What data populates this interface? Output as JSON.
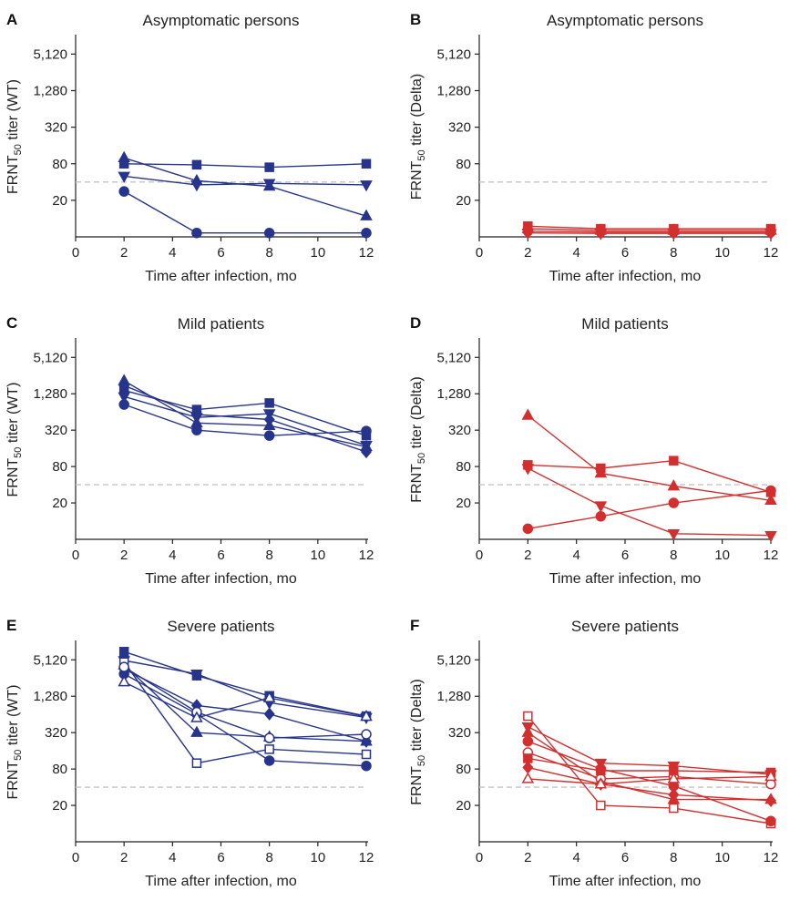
{
  "colors": {
    "wt": "#27348b",
    "delta": "#d32f2f"
  },
  "chart_data": [
    {
      "type": "line",
      "panel": "A",
      "title": "Asymptomatic persons",
      "ylabel": [
        "FRNT",
        "50",
        " titer (WT)"
      ],
      "xlabel": "Time after infection, mo",
      "x_ticks": [
        0,
        2,
        4,
        6,
        8,
        10,
        12
      ],
      "y_ticks": [
        20,
        80,
        320,
        1280,
        5120
      ],
      "y_tick_labels": [
        "20",
        "80",
        "320",
        "1,280",
        "5,120"
      ],
      "xlim": [
        0,
        12
      ],
      "ylim": [
        5,
        10000
      ],
      "yscale": "log",
      "reference_line": 40,
      "color": "wt",
      "series": [
        {
          "marker": "triangle-up",
          "filled": true,
          "x": [
            2,
            5,
            8,
            12
          ],
          "y": [
            100,
            42,
            34,
            11
          ]
        },
        {
          "marker": "square",
          "filled": true,
          "x": [
            2,
            5,
            8,
            12
          ],
          "y": [
            80,
            77,
            70,
            80
          ]
        },
        {
          "marker": "triangle-down",
          "filled": true,
          "x": [
            2,
            5,
            8,
            12
          ],
          "y": [
            50,
            36,
            38,
            36
          ]
        },
        {
          "marker": "circle",
          "filled": true,
          "x": [
            2,
            5,
            8,
            12
          ],
          "y": [
            28,
            5.8,
            5.8,
            5.8
          ]
        }
      ]
    },
    {
      "type": "line",
      "panel": "B",
      "title": "Asymptomatic persons",
      "ylabel": [
        "FRNT",
        "50",
        " titer (Delta)"
      ],
      "xlabel": "Time after infection, mo",
      "x_ticks": [
        0,
        2,
        4,
        6,
        8,
        10,
        12
      ],
      "y_ticks": [
        20,
        80,
        320,
        1280,
        5120
      ],
      "y_tick_labels": [
        "20",
        "80",
        "320",
        "1,280",
        "5,120"
      ],
      "xlim": [
        0,
        12
      ],
      "ylim": [
        5,
        10000
      ],
      "yscale": "log",
      "reference_line": 40,
      "color": "delta",
      "series": [
        {
          "marker": "square",
          "filled": true,
          "x": [
            2,
            5,
            8,
            12
          ],
          "y": [
            7.5,
            6.8,
            6.8,
            6.8
          ]
        },
        {
          "marker": "triangle-up",
          "filled": true,
          "x": [
            2,
            5,
            8,
            12
          ],
          "y": [
            6.8,
            6.4,
            6.4,
            6.4
          ]
        },
        {
          "marker": "circle",
          "filled": true,
          "x": [
            2,
            5,
            8,
            12
          ],
          "y": [
            6.2,
            6.0,
            6.0,
            6.0
          ]
        },
        {
          "marker": "triangle-down",
          "filled": true,
          "x": [
            2,
            5,
            8,
            12
          ],
          "y": [
            5.8,
            5.7,
            5.7,
            5.7
          ]
        }
      ]
    },
    {
      "type": "line",
      "panel": "C",
      "title": "Mild patients",
      "ylabel": [
        "FRNT",
        "50",
        " titer (WT)"
      ],
      "xlabel": "Time after infection, mo",
      "x_ticks": [
        0,
        2,
        4,
        6,
        8,
        10,
        12
      ],
      "y_ticks": [
        20,
        80,
        320,
        1280,
        5120
      ],
      "y_tick_labels": [
        "20",
        "80",
        "320",
        "1,280",
        "5,120"
      ],
      "xlim": [
        0,
        12
      ],
      "ylim": [
        5,
        10000
      ],
      "yscale": "log",
      "reference_line": 40,
      "color": "wt",
      "series": [
        {
          "marker": "triangle-up",
          "filled": true,
          "x": [
            2,
            5,
            8,
            12
          ],
          "y": [
            2100,
            420,
            380,
            170
          ]
        },
        {
          "marker": "square",
          "filled": true,
          "x": [
            2,
            5,
            8,
            12
          ],
          "y": [
            1450,
            700,
            900,
            260
          ]
        },
        {
          "marker": "triangle-down",
          "filled": true,
          "x": [
            2,
            5,
            8,
            12
          ],
          "y": [
            1150,
            520,
            600,
            180
          ]
        },
        {
          "marker": "circle",
          "filled": true,
          "x": [
            2,
            5,
            8,
            12
          ],
          "y": [
            850,
            320,
            260,
            310
          ]
        },
        {
          "marker": "diamond",
          "filled": true,
          "x": [
            2,
            5,
            8,
            12
          ],
          "y": [
            1750,
            580,
            480,
            140
          ]
        }
      ]
    },
    {
      "type": "line",
      "panel": "D",
      "title": "Mild patients",
      "ylabel": [
        "FRNT",
        "50",
        " titer (Delta)"
      ],
      "xlabel": "Time after infection, mo",
      "x_ticks": [
        0,
        2,
        4,
        6,
        8,
        10,
        12
      ],
      "y_ticks": [
        20,
        80,
        320,
        1280,
        5120
      ],
      "y_tick_labels": [
        "20",
        "80",
        "320",
        "1,280",
        "5,120"
      ],
      "xlim": [
        0,
        12
      ],
      "ylim": [
        5,
        10000
      ],
      "yscale": "log",
      "reference_line": 40,
      "color": "delta",
      "series": [
        {
          "marker": "triangle-up",
          "filled": true,
          "x": [
            2,
            5,
            8,
            12
          ],
          "y": [
            560,
            62,
            38,
            22
          ]
        },
        {
          "marker": "square",
          "filled": true,
          "x": [
            2,
            5,
            8,
            12
          ],
          "y": [
            85,
            75,
            100,
            30
          ]
        },
        {
          "marker": "triangle-down",
          "filled": true,
          "x": [
            2,
            5,
            8,
            12
          ],
          "y": [
            75,
            18,
            6.2,
            5.8
          ]
        },
        {
          "marker": "circle",
          "filled": true,
          "x": [
            2,
            5,
            8,
            12
          ],
          "y": [
            7.5,
            12,
            20,
            32
          ]
        }
      ]
    },
    {
      "type": "line",
      "panel": "E",
      "title": "Severe patients",
      "ylabel": [
        "FRNT",
        "50",
        " titer (WT)"
      ],
      "xlabel": "Time after infection, mo",
      "x_ticks": [
        0,
        2,
        4,
        6,
        8,
        10,
        12
      ],
      "y_ticks": [
        20,
        80,
        320,
        1280,
        5120
      ],
      "y_tick_labels": [
        "20",
        "80",
        "320",
        "1,280",
        "5,120"
      ],
      "xlim": [
        0,
        12
      ],
      "ylim": [
        5,
        10000
      ],
      "yscale": "log",
      "reference_line": 40,
      "color": "wt",
      "series": [
        {
          "marker": "square",
          "filled": true,
          "x": [
            2,
            5,
            8,
            12
          ],
          "y": [
            7000,
            2800,
            1300,
            600
          ]
        },
        {
          "marker": "triangle-down",
          "filled": true,
          "x": [
            2,
            5,
            8,
            12
          ],
          "y": [
            5000,
            3000,
            1000,
            570
          ]
        },
        {
          "marker": "triangle-up",
          "filled": true,
          "x": [
            2,
            5,
            8,
            12
          ],
          "y": [
            4200,
            320,
            270,
            230
          ]
        },
        {
          "marker": "diamond",
          "filled": true,
          "x": [
            2,
            5,
            8,
            12
          ],
          "y": [
            3600,
            900,
            650,
            230
          ]
        },
        {
          "marker": "circle",
          "filled": true,
          "x": [
            2,
            5,
            8,
            12
          ],
          "y": [
            3000,
            650,
            110,
            90
          ]
        },
        {
          "marker": "square",
          "filled": false,
          "x": [
            2,
            5,
            8,
            12
          ],
          "y": [
            4700,
            100,
            170,
            140
          ]
        },
        {
          "marker": "circle",
          "filled": false,
          "x": [
            2,
            5,
            8,
            12
          ],
          "y": [
            3900,
            700,
            260,
            300
          ]
        },
        {
          "marker": "triangle-up",
          "filled": false,
          "x": [
            2,
            5,
            8,
            12
          ],
          "y": [
            2200,
            560,
            1200,
            590
          ]
        }
      ]
    },
    {
      "type": "line",
      "panel": "F",
      "title": "Severe patients",
      "ylabel": [
        "FRNT",
        "50",
        " titer (Delta)"
      ],
      "xlabel": "Time after infection, mo",
      "x_ticks": [
        0,
        2,
        4,
        6,
        8,
        10,
        12
      ],
      "y_ticks": [
        20,
        80,
        320,
        1280,
        5120
      ],
      "y_tick_labels": [
        "20",
        "80",
        "320",
        "1,280",
        "5,120"
      ],
      "xlim": [
        0,
        12
      ],
      "ylim": [
        5,
        10000
      ],
      "yscale": "log",
      "reference_line": 40,
      "color": "delta",
      "series": [
        {
          "marker": "square",
          "filled": false,
          "x": [
            2,
            5,
            8,
            12
          ],
          "y": [
            600,
            20,
            18,
            10
          ]
        },
        {
          "marker": "triangle-down",
          "filled": true,
          "x": [
            2,
            5,
            8,
            12
          ],
          "y": [
            400,
            100,
            90,
            65
          ]
        },
        {
          "marker": "triangle-up",
          "filled": true,
          "x": [
            2,
            5,
            8,
            12
          ],
          "y": [
            320,
            50,
            25,
            25
          ]
        },
        {
          "marker": "circle",
          "filled": true,
          "x": [
            2,
            5,
            8,
            12
          ],
          "y": [
            230,
            80,
            42,
            11
          ]
        },
        {
          "marker": "circle",
          "filled": false,
          "x": [
            2,
            5,
            8,
            12
          ],
          "y": [
            150,
            55,
            60,
            45
          ]
        },
        {
          "marker": "square",
          "filled": true,
          "x": [
            2,
            5,
            8,
            12
          ],
          "y": [
            120,
            75,
            75,
            70
          ]
        },
        {
          "marker": "diamond",
          "filled": true,
          "x": [
            2,
            5,
            8,
            12
          ],
          "y": [
            85,
            45,
            30,
            24
          ]
        },
        {
          "marker": "triangle-up",
          "filled": false,
          "x": [
            2,
            5,
            8,
            12
          ],
          "y": [
            55,
            45,
            55,
            60
          ]
        }
      ]
    }
  ]
}
